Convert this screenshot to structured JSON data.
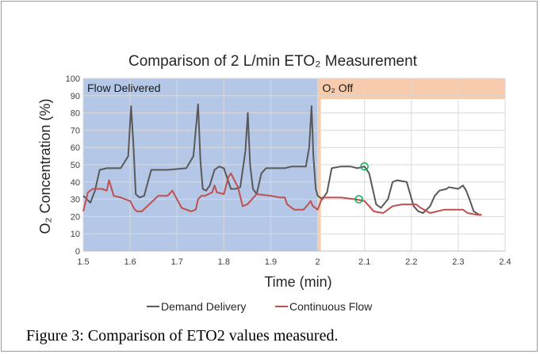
{
  "chart_data": {
    "type": "line",
    "title": "Comparison of 2 L/min ETO₂ Measurement",
    "xlabel": "Time (min)",
    "ylabel": "O₂ Concentration (%)",
    "xlim": [
      1.5,
      2.4
    ],
    "ylim": [
      0,
      100
    ],
    "x_ticks": [
      "1.5",
      "1.6",
      "1.7",
      "1.8",
      "1.9",
      "2",
      "2.1",
      "2.2",
      "2.3",
      "2.4"
    ],
    "y_ticks": [
      "0",
      "10",
      "20",
      "30",
      "40",
      "50",
      "60",
      "70",
      "80",
      "90",
      "100"
    ],
    "grid": true,
    "legend_position": "bottom",
    "regions": [
      {
        "label": "Flow Delivered",
        "x_start": 1.5,
        "x_end": 2.0,
        "color": "#b4c7e7"
      },
      {
        "label": "O₂ Off",
        "x_start": 2.0,
        "x_end": 2.4,
        "color": "#f8cbad"
      }
    ],
    "series": [
      {
        "name": "Demand Delivery",
        "color": "#595959",
        "x": [
          1.5,
          1.508,
          1.515,
          1.525,
          1.535,
          1.55,
          1.58,
          1.596,
          1.602,
          1.607,
          1.612,
          1.62,
          1.63,
          1.645,
          1.68,
          1.72,
          1.735,
          1.745,
          1.75,
          1.755,
          1.762,
          1.77,
          1.78,
          1.79,
          1.8,
          1.815,
          1.825,
          1.835,
          1.846,
          1.851,
          1.856,
          1.862,
          1.87,
          1.88,
          1.89,
          1.9,
          1.915,
          1.93,
          1.945,
          1.96,
          1.975,
          1.982,
          1.987,
          1.991,
          1.996,
          2.0,
          2.01,
          2.02,
          2.03,
          2.05,
          2.07,
          2.085,
          2.1,
          2.11,
          2.125,
          2.135,
          2.15,
          2.16,
          2.17,
          2.19,
          2.205,
          2.215,
          2.225,
          2.24,
          2.25,
          2.26,
          2.275,
          2.28,
          2.3,
          2.31,
          2.317,
          2.324,
          2.333,
          2.345,
          2.35
        ],
        "y": [
          32,
          30,
          28,
          35,
          47,
          48,
          48,
          55,
          84,
          62,
          33,
          31,
          32,
          47,
          47,
          48,
          55,
          85,
          52,
          36,
          35,
          38,
          47,
          49,
          48,
          36,
          36,
          37,
          58,
          80,
          50,
          36,
          33,
          45,
          48,
          48,
          48,
          48,
          49,
          49,
          49,
          60,
          84,
          55,
          36,
          32,
          30,
          34,
          48,
          49,
          49,
          48,
          49,
          45,
          27,
          25,
          30,
          40,
          41,
          40,
          26,
          23,
          22,
          26,
          32,
          35,
          36,
          37,
          36,
          38,
          35,
          30,
          23,
          21,
          21
        ]
      },
      {
        "name": "Continuous Flow",
        "color": "#c0504d",
        "x": [
          1.5,
          1.51,
          1.52,
          1.54,
          1.55,
          1.555,
          1.565,
          1.58,
          1.6,
          1.61,
          1.615,
          1.625,
          1.66,
          1.68,
          1.69,
          1.7,
          1.71,
          1.73,
          1.74,
          1.745,
          1.752,
          1.76,
          1.775,
          1.78,
          1.785,
          1.8,
          1.81,
          1.815,
          1.83,
          1.84,
          1.85,
          1.86,
          1.87,
          1.9,
          1.92,
          1.93,
          1.935,
          1.95,
          1.97,
          1.98,
          1.985,
          1.99,
          2.0,
          2.01,
          2.05,
          2.08,
          2.1,
          2.12,
          2.14,
          2.16,
          2.18,
          2.21,
          2.22,
          2.24,
          2.27,
          2.31,
          2.32,
          2.34,
          2.35
        ],
        "y": [
          23,
          34,
          36,
          36,
          35,
          41,
          32,
          31,
          29,
          24,
          23,
          23,
          32,
          32,
          35,
          30,
          25,
          23,
          24,
          30,
          32,
          32,
          34,
          38,
          34,
          33,
          43,
          45,
          37,
          26,
          27,
          30,
          33,
          32,
          31,
          31,
          27,
          24,
          24,
          27,
          29,
          26,
          24,
          31,
          31,
          30,
          29,
          23,
          22,
          26,
          27,
          27,
          25,
          22,
          24,
          24,
          22,
          21,
          21
        ]
      }
    ],
    "markers": [
      {
        "series": "Demand Delivery",
        "x": 2.1,
        "y": 49,
        "color": "#00b050"
      },
      {
        "series": "Continuous Flow",
        "x": 2.088,
        "y": 30,
        "color": "#00b050"
      }
    ]
  },
  "caption": "Figure 3: Comparison of ETO2 values measured."
}
